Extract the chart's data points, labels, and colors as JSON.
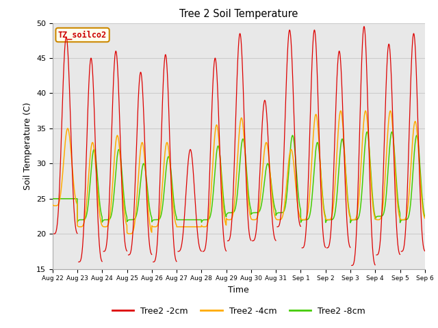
{
  "title": "Tree 2 Soil Temperature",
  "xlabel": "Time",
  "ylabel": "Soil Temperature (C)",
  "ylim": [
    15,
    50
  ],
  "annotation": "TZ_soilco2",
  "annotation_color": "#cc0000",
  "annotation_bg": "#ffffee",
  "annotation_border": "#cc8800",
  "line_colors": {
    "2cm": "#dd0000",
    "4cm": "#ffaa00",
    "8cm": "#44cc00"
  },
  "legend_labels": [
    "Tree2 -2cm",
    "Tree2 -4cm",
    "Tree2 -8cm"
  ],
  "xtick_labels": [
    "Aug 22",
    "Aug 23",
    "Aug 24",
    "Aug 25",
    "Aug 26",
    "Aug 27",
    "Aug 28",
    "Aug 29",
    "Aug 30",
    "Aug 31",
    "Sep 1",
    "Sep 2",
    "Sep 3",
    "Sep 4",
    "Sep 5",
    "Sep 6"
  ],
  "ytick_labels": [
    15,
    20,
    25,
    30,
    35,
    40,
    45,
    50
  ],
  "grid_color": "#cccccc",
  "plot_bg": "#e8e8e8",
  "n_days": 15,
  "daily_peaks_2cm": [
    48,
    45,
    46,
    43,
    45.5,
    32,
    45,
    48.5,
    39,
    49,
    49,
    46,
    49.5,
    47,
    48.5
  ],
  "daily_troughs_2cm": [
    20,
    16,
    17.5,
    17,
    16,
    17.5,
    17.5,
    19,
    19,
    21,
    18,
    18,
    15.5,
    17,
    17.5
  ],
  "daily_peaks_4cm": [
    35,
    33,
    34,
    33,
    33,
    21,
    35.5,
    36.5,
    33,
    32,
    37,
    37.5,
    37.5,
    37.5,
    36
  ],
  "daily_troughs_4cm": [
    24,
    21,
    21,
    20,
    21,
    21,
    21,
    22,
    22,
    22,
    22,
    22,
    22,
    22,
    22
  ],
  "daily_peaks_8cm": [
    25,
    32,
    32,
    30,
    31,
    22,
    32.5,
    33.5,
    30,
    34,
    33,
    33.5,
    34.5,
    34.5,
    34
  ],
  "daily_troughs_8cm": [
    25,
    22,
    22,
    22,
    22,
    22,
    22,
    23,
    23,
    23,
    22,
    22,
    22,
    22.5,
    22
  ],
  "peak_phase": 0.55,
  "sharpness": 3.5
}
